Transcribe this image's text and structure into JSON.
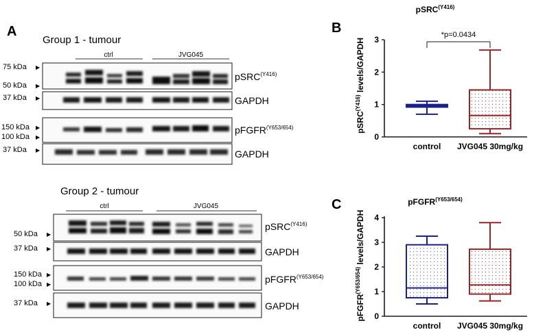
{
  "panel_a": {
    "letter": "A",
    "colors": {
      "band": "#151515",
      "frame": "#1a1a1a",
      "lane_label": "#222222"
    },
    "groups": [
      {
        "title": "Group 1 - tumour",
        "lane_groups": [
          {
            "label": "ctrl",
            "lanes": 4
          },
          {
            "label": "JVG045",
            "lanes": 4
          }
        ],
        "blots": [
          {
            "markers": [
              "75 kDa",
              "50 kDa"
            ],
            "protein": "pSRC",
            "superscript": "(Y416)"
          },
          {
            "markers": [
              "37 kDa"
            ],
            "protein": "GAPDH",
            "superscript": ""
          },
          {
            "markers": [
              "150 kDa",
              "100 kDa"
            ],
            "protein": "pFGFR",
            "superscript": "(Y653/654)"
          },
          {
            "markers": [
              "37 kDa"
            ],
            "protein": "GAPDH",
            "superscript": ""
          }
        ]
      },
      {
        "title": "Group 2 - tumour",
        "lane_groups": [
          {
            "label": "ctrl",
            "lanes": 4
          },
          {
            "label": "JVG045",
            "lanes": 5
          }
        ],
        "blots": [
          {
            "markers": [
              "50 kDa"
            ],
            "protein": "pSRC",
            "superscript": "(Y416)"
          },
          {
            "markers": [
              "37 kDa"
            ],
            "protein": "GAPDH",
            "superscript": ""
          },
          {
            "markers": [
              "150 kDa",
              "100 kDa"
            ],
            "protein": "pFGFR",
            "superscript": "(Y653/654)"
          },
          {
            "markers": [
              "37 kDa"
            ],
            "protein": "GAPDH",
            "superscript": ""
          }
        ]
      }
    ]
  },
  "chart_data": [
    {
      "panel": "B",
      "type": "box",
      "title": "pSRC",
      "title_superscript": "(Y416)",
      "ylabel_prefix": "pSRC",
      "ylabel_superscript": "(Y416)",
      "ylabel_suffix": " levels/GAPDH",
      "categories": [
        "control",
        "JVG045 30mg/kg"
      ],
      "yticks": [
        "0",
        "1",
        "2",
        "3"
      ],
      "ylim": [
        0,
        3
      ],
      "annotation": "*p=0.0434",
      "boxes": [
        {
          "min": 0.7,
          "q1": 0.92,
          "median": 0.96,
          "q3": 1.0,
          "max": 1.1,
          "color": "#1a1f8a",
          "fill": "dots"
        },
        {
          "min": 0.1,
          "q1": 0.25,
          "median": 0.66,
          "q3": 1.45,
          "max": 2.68,
          "color": "#9b2323",
          "fill": "dots"
        }
      ]
    },
    {
      "panel": "C",
      "type": "box",
      "title": "pFGFR",
      "title_superscript": "(Y653/654)",
      "ylabel_prefix": "pFGFR",
      "ylabel_superscript": "(Y653/654)",
      "ylabel_suffix": " levels/GAPDH",
      "categories": [
        "control",
        "JVG045 30mg/kg"
      ],
      "yticks": [
        "0",
        "1",
        "2",
        "3",
        "4"
      ],
      "ylim": [
        0,
        4
      ],
      "annotation": "",
      "boxes": [
        {
          "min": 0.5,
          "q1": 0.75,
          "median": 1.15,
          "q3": 2.9,
          "max": 3.25,
          "color": "#1a1f8a",
          "fill": "dots"
        },
        {
          "min": 0.62,
          "q1": 0.9,
          "median": 1.27,
          "q3": 2.72,
          "max": 3.8,
          "color": "#9b2323",
          "fill": "dots"
        }
      ]
    }
  ]
}
